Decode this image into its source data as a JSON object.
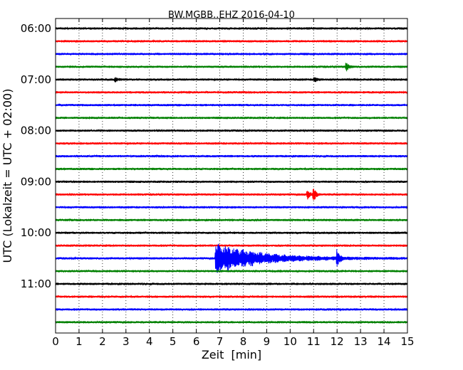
{
  "chart_data": {
    "type": "line",
    "title": "BW.MGBB..EHZ 2016-04-10",
    "xlabel": "Zeit  [min]",
    "ylabel": "UTC (Lokalzeit = UTC + 02:00)",
    "xlim": [
      0,
      15
    ],
    "x_ticks": [
      "0",
      "1",
      "2",
      "3",
      "4",
      "5",
      "6",
      "7",
      "8",
      "9",
      "10",
      "11",
      "12",
      "13",
      "14",
      "15"
    ],
    "y_tick_labels": [
      "06:00",
      "07:00",
      "08:00",
      "09:00",
      "10:00",
      "11:00"
    ],
    "grid": "vertical dotted",
    "series": [
      {
        "start": "06:00",
        "color": "#000000"
      },
      {
        "start": "06:15",
        "color": "#ff0000"
      },
      {
        "start": "06:30",
        "color": "#0000ff"
      },
      {
        "start": "06:45",
        "color": "#008000",
        "events": [
          {
            "t": 12.4,
            "amp": 6
          }
        ]
      },
      {
        "start": "07:00",
        "color": "#000000",
        "events": [
          {
            "t": 2.55,
            "amp": 3
          },
          {
            "t": 11.05,
            "amp": 4
          }
        ]
      },
      {
        "start": "07:15",
        "color": "#ff0000"
      },
      {
        "start": "07:30",
        "color": "#0000ff"
      },
      {
        "start": "07:45",
        "color": "#008000"
      },
      {
        "start": "08:00",
        "color": "#000000"
      },
      {
        "start": "08:15",
        "color": "#ff0000"
      },
      {
        "start": "08:30",
        "color": "#0000ff"
      },
      {
        "start": "08:45",
        "color": "#008000"
      },
      {
        "start": "09:00",
        "color": "#000000"
      },
      {
        "start": "09:15",
        "color": "#ff0000",
        "events": [
          {
            "t": 10.75,
            "amp": 7
          },
          {
            "t": 11.0,
            "amp": 11
          }
        ]
      },
      {
        "start": "09:30",
        "color": "#0000ff"
      },
      {
        "start": "09:45",
        "color": "#008000"
      },
      {
        "start": "10:00",
        "color": "#000000"
      },
      {
        "start": "10:15",
        "color": "#ff0000"
      },
      {
        "start": "10:30",
        "color": "#0000ff",
        "quake": {
          "onset": 6.8,
          "peak_amp": 23,
          "aftershock": 12.0
        }
      },
      {
        "start": "10:45",
        "color": "#008000"
      },
      {
        "start": "11:00",
        "color": "#000000"
      },
      {
        "start": "11:15",
        "color": "#ff0000"
      },
      {
        "start": "11:30",
        "color": "#0000ff"
      },
      {
        "start": "11:45",
        "color": "#008000"
      }
    ]
  }
}
